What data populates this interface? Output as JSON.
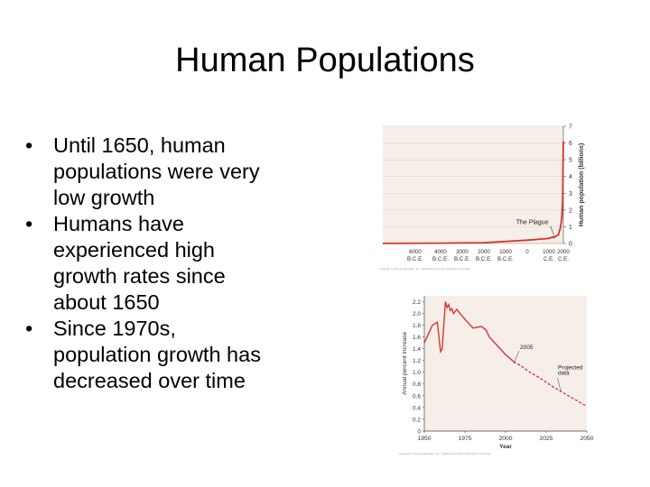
{
  "slide": {
    "title": "Human Populations",
    "bullets": [
      "Until 1650, human populations were very low growth",
      "Humans have experienced high growth rates since about 1650",
      "Since 1970s, population growth has decreased over time"
    ],
    "bullet_char": "•"
  },
  "chart_data": [
    {
      "type": "line",
      "title": "",
      "xlabel": "",
      "ylabel": "Human population (billions)",
      "x_tick_labels": [
        [
          "6000",
          "B.C.E."
        ],
        [
          "4000",
          "B.C.E."
        ],
        [
          "3000",
          "B.C.E."
        ],
        [
          "2000",
          "B.C.E."
        ],
        [
          "1000",
          "B.C.E."
        ],
        [
          "0",
          ""
        ],
        [
          "1000",
          "C.E."
        ],
        [
          "2000",
          "C.E."
        ]
      ],
      "x_tick_years": [
        -6000,
        -4000,
        -3000,
        -2000,
        -1000,
        0,
        1000,
        2000
      ],
      "y_ticks": [
        "0",
        "1",
        "2",
        "3",
        "4",
        "5",
        "6",
        "7"
      ],
      "ylim": [
        0,
        7
      ],
      "y_axis_side": "right",
      "annotations": [
        {
          "text": "The Plague",
          "x": 1350,
          "y": 0.4
        }
      ],
      "series": [
        {
          "color": "#d9342b",
          "points": [
            [
              -6800,
              0.005
            ],
            [
              -4000,
              0.02
            ],
            [
              -2000,
              0.05
            ],
            [
              0,
              0.2
            ],
            [
              1000,
              0.3
            ],
            [
              1300,
              0.4
            ],
            [
              1350,
              0.35
            ],
            [
              1500,
              0.45
            ],
            [
              1650,
              0.5
            ],
            [
              1800,
              0.95
            ],
            [
              1900,
              1.6
            ],
            [
              1950,
              2.5
            ],
            [
              1970,
              3.7
            ],
            [
              1990,
              5.3
            ],
            [
              2000,
              6.1
            ]
          ]
        }
      ],
      "grid": true,
      "footer": "Copyright © Pearson Education, Inc., publishing as Pearson Benjamin Cummings."
    },
    {
      "type": "line",
      "title": "",
      "xlabel": "Year",
      "ylabel": "Annual percent increase",
      "x_ticks": [
        "1950",
        "1975",
        "2000",
        "2025",
        "2050"
      ],
      "xlim": [
        1950,
        2050
      ],
      "y_ticks": [
        "0",
        "0.2",
        "0.4",
        "0.6",
        "0.8",
        "1.0",
        "1.2",
        "1.4",
        "1.6",
        "1.8",
        "2.0",
        "2.2"
      ],
      "ylim": [
        0,
        2.3
      ],
      "annotations": [
        {
          "text": "2005",
          "x": 2005,
          "y": 1.15
        },
        {
          "text": "Projected",
          "x": 2030,
          "y": 1.0
        },
        {
          "text": "data",
          "x": 2030,
          "y": 0.93
        }
      ],
      "series": [
        {
          "name": "",
          "color": "#d9342b",
          "dashed": false,
          "points": [
            [
              1950,
              1.5
            ],
            [
              1955,
              1.8
            ],
            [
              1958,
              1.85
            ],
            [
              1960,
              1.35
            ],
            [
              1961,
              1.4
            ],
            [
              1963,
              2.2
            ],
            [
              1964,
              2.1
            ],
            [
              1965,
              2.15
            ],
            [
              1966,
              2.05
            ],
            [
              1967,
              2.08
            ],
            [
              1968,
              2.0
            ],
            [
              1970,
              2.07
            ],
            [
              1972,
              2.0
            ],
            [
              1975,
              1.9
            ],
            [
              1980,
              1.75
            ],
            [
              1985,
              1.78
            ],
            [
              1988,
              1.72
            ],
            [
              1990,
              1.6
            ],
            [
              1995,
              1.45
            ],
            [
              2000,
              1.3
            ],
            [
              2005,
              1.18
            ]
          ]
        },
        {
          "name": "",
          "color": "#d9342b",
          "dashed": true,
          "points": [
            [
              2005,
              1.18
            ],
            [
              2010,
              1.1
            ],
            [
              2015,
              1.0
            ],
            [
              2020,
              0.92
            ],
            [
              2025,
              0.83
            ],
            [
              2030,
              0.74
            ],
            [
              2035,
              0.66
            ],
            [
              2040,
              0.58
            ],
            [
              2045,
              0.5
            ],
            [
              2050,
              0.42
            ]
          ]
        }
      ],
      "grid": false,
      "footer": "Copyright © Pearson Education, Inc., publishing as Pearson Benjamin Cummings."
    }
  ]
}
